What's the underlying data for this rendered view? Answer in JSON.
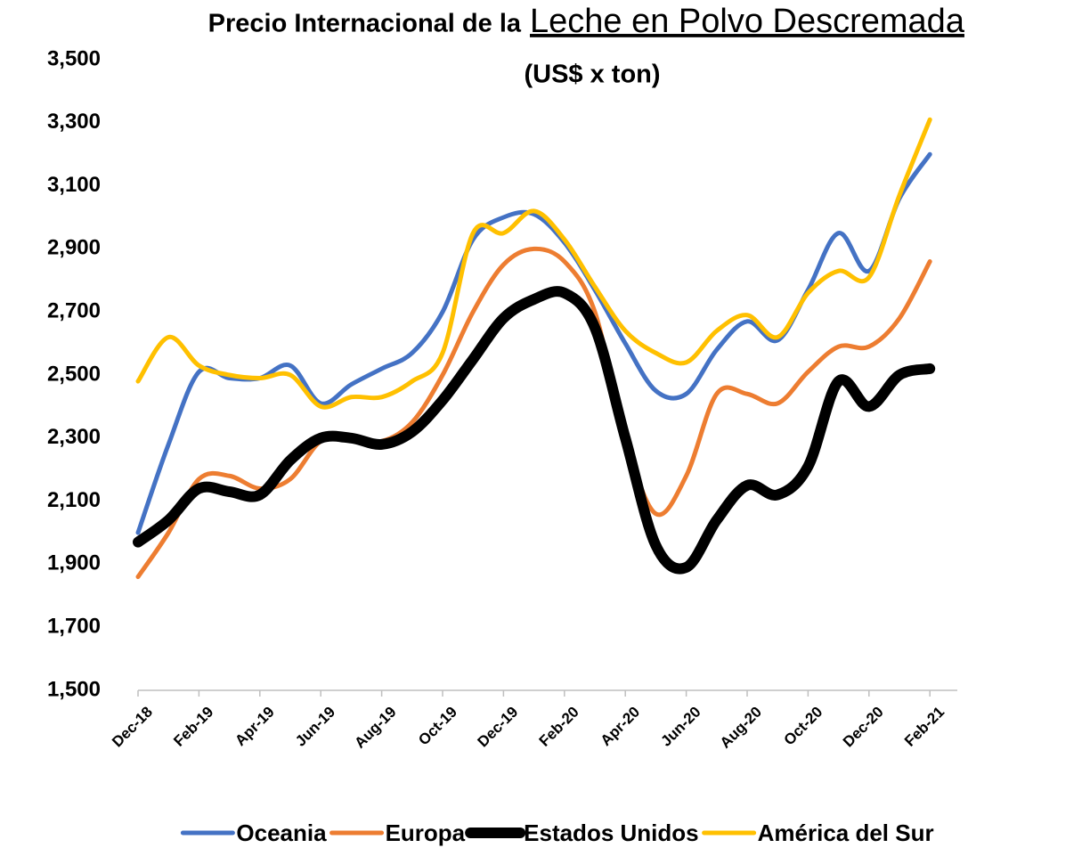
{
  "chart_data": {
    "type": "line",
    "title": "Precio Internacional de la",
    "title_emphasis": "Leche en Polvo Descremada",
    "subtitle": "(US$ x ton)",
    "categories": [
      "Dec-18",
      null,
      "Feb-19",
      null,
      "Apr-19",
      null,
      "Jun-19",
      null,
      "Aug-19",
      null,
      "Oct-19",
      null,
      "Dec-19",
      null,
      "Feb-20",
      null,
      "Apr-20",
      null,
      "Jun-20",
      null,
      "Aug-20",
      null,
      "Oct-20",
      null,
      "Dec-20",
      null,
      "Feb-21"
    ],
    "series": [
      {
        "name": "Oceania",
        "color": "#4472c4",
        "values": [
          2000,
          2280,
          2510,
          2490,
          2490,
          2530,
          2410,
          2470,
          2520,
          2570,
          2700,
          2930,
          3000,
          3010,
          2920,
          2770,
          2600,
          2450,
          2440,
          2580,
          2670,
          2610,
          2770,
          2950,
          2830,
          3060,
          3200
        ]
      },
      {
        "name": "Europa",
        "color": "#ed7d31",
        "values": [
          1860,
          2000,
          2170,
          2180,
          2140,
          2170,
          2290,
          2300,
          2290,
          2350,
          2500,
          2700,
          2850,
          2900,
          2860,
          2700,
          2300,
          2060,
          2180,
          2440,
          2440,
          2410,
          2510,
          2590,
          2590,
          2680,
          2860
        ]
      },
      {
        "name": "Estados Unidos",
        "color": "#000000",
        "values": [
          1970,
          2040,
          2140,
          2130,
          2120,
          2230,
          2300,
          2300,
          2280,
          2320,
          2420,
          2550,
          2680,
          2740,
          2760,
          2650,
          2300,
          1960,
          1890,
          2040,
          2150,
          2120,
          2210,
          2480,
          2400,
          2500,
          2520
        ]
      },
      {
        "name": "América del Sur",
        "color": "#ffc000",
        "values": [
          2480,
          2620,
          2530,
          2500,
          2490,
          2500,
          2400,
          2430,
          2430,
          2480,
          2570,
          2950,
          2950,
          3020,
          2930,
          2780,
          2640,
          2570,
          2540,
          2640,
          2690,
          2620,
          2760,
          2830,
          2810,
          3070,
          3310
        ]
      }
    ],
    "ylim": [
      1500,
      3500
    ],
    "yticks": [
      {
        "value": 1500,
        "label": "1,500"
      },
      {
        "value": 1700,
        "label": "1,700"
      },
      {
        "value": 1900,
        "label": "1,900"
      },
      {
        "value": 2100,
        "label": "2,100"
      },
      {
        "value": 2300,
        "label": "2,300"
      },
      {
        "value": 2500,
        "label": "2,500"
      },
      {
        "value": 2700,
        "label": "2,700"
      },
      {
        "value": 2900,
        "label": "2,900"
      },
      {
        "value": 3100,
        "label": "3,100"
      },
      {
        "value": 3300,
        "label": "3,300"
      },
      {
        "value": 3500,
        "label": "3,500"
      }
    ],
    "grid": false,
    "legend": "bottom"
  }
}
